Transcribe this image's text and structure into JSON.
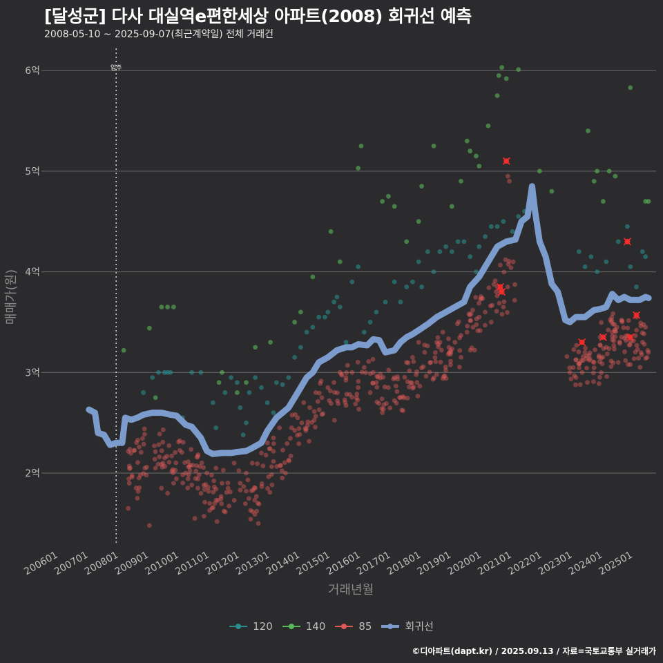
{
  "header": {
    "title": "[달성군] 다사 대실역e편한세상 아파트(2008) 회귀선 예측",
    "subtitle": "2008-05-10 ~ 2025-09-07(최근계약일) 전체 거래건"
  },
  "caption": "©디아파트(dapt.kr) / 2025.09.13 / 자료=국토교통부 실거래가",
  "chart_data": {
    "type": "scatter",
    "xlabel": "거래년월",
    "ylabel": "매매가(원)",
    "x_ticks": [
      "200601",
      "200701",
      "200801",
      "200901",
      "201001",
      "201101",
      "201201",
      "201301",
      "201401",
      "201501",
      "201601",
      "201701",
      "201801",
      "201901",
      "202001",
      "202101",
      "202201",
      "202301",
      "202401",
      "202501"
    ],
    "y_ticks": [
      {
        "value": 2,
        "label": "2억"
      },
      {
        "value": 3,
        "label": "3억"
      },
      {
        "value": 4,
        "label": "4억"
      },
      {
        "value": 5,
        "label": "5억"
      },
      {
        "value": 6,
        "label": "6억"
      }
    ],
    "xlim": [
      2005.53,
      2025.85
    ],
    "ylim": [
      1.28,
      6.22
    ],
    "grid": true,
    "legend_position": "bottom",
    "annotation": {
      "label": "입주",
      "x": 2008.0
    },
    "series": [
      {
        "name": "120",
        "color": "#2a8c8c",
        "kind": "points",
        "points": [
          [
            2008.9,
            2.8
          ],
          [
            2009.2,
            2.95
          ],
          [
            2009.4,
            3.0
          ],
          [
            2009.6,
            3.0
          ],
          [
            2009.7,
            3.0
          ],
          [
            2009.8,
            3.0
          ],
          [
            2010.2,
            2.55
          ],
          [
            2010.5,
            3.0
          ],
          [
            2010.8,
            3.0
          ],
          [
            2011.2,
            2.7
          ],
          [
            2011.3,
            2.45
          ],
          [
            2011.6,
            2.8
          ],
          [
            2011.8,
            2.95
          ],
          [
            2012.0,
            2.9
          ],
          [
            2012.1,
            2.65
          ],
          [
            2012.2,
            2.38
          ],
          [
            2012.3,
            2.5
          ],
          [
            2012.4,
            2.8
          ],
          [
            2012.6,
            2.95
          ],
          [
            2012.8,
            2.85
          ],
          [
            2013.0,
            2.7
          ],
          [
            2013.2,
            2.6
          ],
          [
            2013.3,
            2.9
          ],
          [
            2013.5,
            2.88
          ],
          [
            2013.7,
            2.95
          ],
          [
            2013.9,
            3.15
          ],
          [
            2014.1,
            3.25
          ],
          [
            2014.3,
            3.4
          ],
          [
            2014.5,
            3.45
          ],
          [
            2014.7,
            3.55
          ],
          [
            2014.9,
            3.55
          ],
          [
            2015.0,
            3.6
          ],
          [
            2015.2,
            3.7
          ],
          [
            2015.3,
            3.75
          ],
          [
            2015.4,
            3.65
          ],
          [
            2015.6,
            3.3
          ],
          [
            2015.8,
            3.9
          ],
          [
            2016.0,
            4.05
          ],
          [
            2016.2,
            3.4
          ],
          [
            2016.4,
            3.5
          ],
          [
            2016.6,
            3.6
          ],
          [
            2016.9,
            3.7
          ],
          [
            2017.2,
            3.9
          ],
          [
            2017.4,
            3.7
          ],
          [
            2017.6,
            3.85
          ],
          [
            2017.8,
            3.9
          ],
          [
            2018.0,
            4.1
          ],
          [
            2018.1,
            3.85
          ],
          [
            2018.3,
            4.2
          ],
          [
            2018.5,
            4.0
          ],
          [
            2018.7,
            4.2
          ],
          [
            2018.9,
            4.25
          ],
          [
            2019.1,
            4.2
          ],
          [
            2019.3,
            4.3
          ],
          [
            2019.5,
            4.3
          ],
          [
            2019.7,
            4.15
          ],
          [
            2019.9,
            4.0
          ],
          [
            2020.0,
            4.25
          ],
          [
            2020.2,
            4.35
          ],
          [
            2020.4,
            4.45
          ],
          [
            2020.6,
            4.45
          ],
          [
            2020.8,
            4.5
          ],
          [
            2020.9,
            4.3
          ],
          [
            2021.1,
            4.4
          ],
          [
            2021.3,
            4.55
          ],
          [
            2021.5,
            4.6
          ],
          [
            2021.7,
            4.7
          ],
          [
            2023.3,
            4.2
          ],
          [
            2023.5,
            4.05
          ],
          [
            2023.7,
            4.15
          ],
          [
            2023.9,
            4.0
          ],
          [
            2024.2,
            4.1
          ],
          [
            2024.6,
            4.3
          ],
          [
            2024.9,
            4.45
          ],
          [
            2025.0,
            4.05
          ],
          [
            2025.2,
            3.85
          ],
          [
            2025.4,
            4.2
          ],
          [
            2025.5,
            4.15
          ]
        ]
      },
      {
        "name": "140",
        "color": "#5ab85a",
        "kind": "points",
        "points": [
          [
            2008.25,
            3.22
          ],
          [
            2009.1,
            3.44
          ],
          [
            2009.3,
            2.75
          ],
          [
            2009.5,
            3.65
          ],
          [
            2009.7,
            3.65
          ],
          [
            2009.9,
            3.65
          ],
          [
            2011.4,
            2.9
          ],
          [
            2011.5,
            3.0
          ],
          [
            2012.0,
            2.8
          ],
          [
            2012.3,
            2.9
          ],
          [
            2012.6,
            3.25
          ],
          [
            2013.1,
            3.3
          ],
          [
            2013.9,
            3.5
          ],
          [
            2014.1,
            3.6
          ],
          [
            2014.5,
            3.95
          ],
          [
            2015.1,
            4.4
          ],
          [
            2015.4,
            4.1
          ],
          [
            2016.0,
            5.03
          ],
          [
            2016.1,
            5.25
          ],
          [
            2016.8,
            4.7
          ],
          [
            2017.0,
            4.75
          ],
          [
            2017.2,
            4.65
          ],
          [
            2017.6,
            4.3
          ],
          [
            2018.0,
            4.5
          ],
          [
            2018.1,
            4.85
          ],
          [
            2018.5,
            5.25
          ],
          [
            2019.1,
            4.65
          ],
          [
            2019.4,
            4.9
          ],
          [
            2019.6,
            5.3
          ],
          [
            2019.7,
            5.2
          ],
          [
            2019.9,
            5.15
          ],
          [
            2020.0,
            5.05
          ],
          [
            2020.3,
            5.45
          ],
          [
            2020.6,
            5.75
          ],
          [
            2020.65,
            5.95
          ],
          [
            2020.75,
            6.03
          ],
          [
            2020.9,
            5.92
          ],
          [
            2021.3,
            6.01
          ],
          [
            2022.0,
            5.0
          ],
          [
            2022.4,
            4.8
          ],
          [
            2023.6,
            5.4
          ],
          [
            2023.8,
            4.9
          ],
          [
            2023.9,
            5.0
          ],
          [
            2024.1,
            4.7
          ],
          [
            2024.3,
            5.0
          ],
          [
            2024.5,
            4.95
          ],
          [
            2025.0,
            5.83
          ],
          [
            2025.5,
            4.7
          ],
          [
            2025.6,
            4.7
          ]
        ]
      },
      {
        "name": "85",
        "color": "#e05a5a",
        "kind": "points",
        "points": []
      },
      {
        "name": "회귀선",
        "color": "#7b9ccd",
        "kind": "line",
        "points": [
          [
            2007.1,
            2.63
          ],
          [
            2007.3,
            2.6
          ],
          [
            2007.4,
            2.4
          ],
          [
            2007.6,
            2.38
          ],
          [
            2007.8,
            2.28
          ],
          [
            2008.0,
            2.3
          ],
          [
            2008.2,
            2.3
          ],
          [
            2008.3,
            2.55
          ],
          [
            2008.5,
            2.53
          ],
          [
            2008.7,
            2.55
          ],
          [
            2008.9,
            2.58
          ],
          [
            2009.2,
            2.6
          ],
          [
            2009.5,
            2.6
          ],
          [
            2009.8,
            2.58
          ],
          [
            2010.0,
            2.57
          ],
          [
            2010.3,
            2.48
          ],
          [
            2010.5,
            2.46
          ],
          [
            2010.8,
            2.35
          ],
          [
            2011.0,
            2.22
          ],
          [
            2011.2,
            2.19
          ],
          [
            2011.5,
            2.2
          ],
          [
            2011.8,
            2.2
          ],
          [
            2012.0,
            2.21
          ],
          [
            2012.3,
            2.22
          ],
          [
            2012.5,
            2.25
          ],
          [
            2012.8,
            2.3
          ],
          [
            2013.0,
            2.42
          ],
          [
            2013.3,
            2.55
          ],
          [
            2013.5,
            2.6
          ],
          [
            2013.7,
            2.65
          ],
          [
            2014.0,
            2.8
          ],
          [
            2014.3,
            2.95
          ],
          [
            2014.5,
            3.0
          ],
          [
            2014.7,
            3.1
          ],
          [
            2015.0,
            3.15
          ],
          [
            2015.3,
            3.22
          ],
          [
            2015.6,
            3.25
          ],
          [
            2015.8,
            3.25
          ],
          [
            2016.0,
            3.28
          ],
          [
            2016.3,
            3.27
          ],
          [
            2016.5,
            3.33
          ],
          [
            2016.7,
            3.32
          ],
          [
            2016.9,
            3.2
          ],
          [
            2017.2,
            3.22
          ],
          [
            2017.4,
            3.3
          ],
          [
            2017.6,
            3.35
          ],
          [
            2017.8,
            3.38
          ],
          [
            2018.0,
            3.42
          ],
          [
            2018.3,
            3.48
          ],
          [
            2018.6,
            3.55
          ],
          [
            2018.9,
            3.6
          ],
          [
            2019.2,
            3.65
          ],
          [
            2019.5,
            3.7
          ],
          [
            2019.7,
            3.85
          ],
          [
            2020.0,
            3.95
          ],
          [
            2020.2,
            4.05
          ],
          [
            2020.4,
            4.15
          ],
          [
            2020.6,
            4.25
          ],
          [
            2020.9,
            4.3
          ],
          [
            2021.2,
            4.32
          ],
          [
            2021.4,
            4.5
          ],
          [
            2021.6,
            4.55
          ],
          [
            2021.75,
            4.85
          ],
          [
            2021.85,
            4.6
          ],
          [
            2022.0,
            4.3
          ],
          [
            2022.2,
            4.15
          ],
          [
            2022.4,
            3.88
          ],
          [
            2022.6,
            3.8
          ],
          [
            2022.85,
            3.52
          ],
          [
            2023.0,
            3.5
          ],
          [
            2023.2,
            3.55
          ],
          [
            2023.5,
            3.55
          ],
          [
            2023.8,
            3.62
          ],
          [
            2024.0,
            3.63
          ],
          [
            2024.2,
            3.65
          ],
          [
            2024.4,
            3.78
          ],
          [
            2024.6,
            3.72
          ],
          [
            2024.8,
            3.75
          ],
          [
            2025.0,
            3.72
          ],
          [
            2025.3,
            3.72
          ],
          [
            2025.5,
            3.75
          ],
          [
            2025.6,
            3.74
          ]
        ]
      }
    ],
    "series_85_generator": {
      "description_points": [
        [
          2008.95,
          2.05
        ],
        [
          2009.0,
          1.98
        ],
        [
          2009.1,
          1.48
        ],
        [
          2009.3,
          2.05
        ],
        [
          2009.5,
          1.85
        ],
        [
          2009.7,
          1.8
        ],
        [
          2008.4,
          1.65
        ],
        [
          2008.7,
          1.75
        ],
        [
          2009.9,
          1.9
        ],
        [
          2010.3,
          2.0
        ],
        [
          2010.6,
          1.55
        ],
        [
          2010.7,
          1.85
        ],
        [
          2010.9,
          1.88
        ],
        [
          2011.0,
          2.0
        ],
        [
          2011.3,
          2.05
        ],
        [
          2011.5,
          1.9
        ],
        [
          2011.7,
          1.85
        ],
        [
          2011.9,
          2.1
        ],
        [
          2012.1,
          1.9
        ],
        [
          2012.3,
          2.0
        ],
        [
          2012.5,
          2.1
        ],
        [
          2012.7,
          1.5
        ],
        [
          2012.8,
          2.2
        ],
        [
          2013.0,
          2.3
        ],
        [
          2013.2,
          2.35
        ],
        [
          2013.4,
          2.45
        ],
        [
          2013.6,
          2.0
        ],
        [
          2013.8,
          2.45
        ],
        [
          2014.0,
          2.55
        ],
        [
          2014.2,
          2.7
        ],
        [
          2014.4,
          2.65
        ],
        [
          2014.6,
          2.8
        ],
        [
          2014.8,
          2.75
        ],
        [
          2015.0,
          2.85
        ],
        [
          2015.2,
          2.9
        ],
        [
          2015.4,
          3.0
        ],
        [
          2015.6,
          2.95
        ],
        [
          2015.8,
          3.0
        ],
        [
          2016.0,
          2.85
        ],
        [
          2016.2,
          3.05
        ],
        [
          2016.4,
          2.8
        ],
        [
          2016.6,
          2.9
        ],
        [
          2016.8,
          2.6
        ],
        [
          2017.0,
          2.85
        ],
        [
          2017.2,
          2.95
        ],
        [
          2017.4,
          2.75
        ],
        [
          2017.6,
          3.1
        ],
        [
          2017.8,
          3.15
        ],
        [
          2018.0,
          3.3
        ],
        [
          2018.2,
          3.2
        ],
        [
          2018.4,
          3.1
        ],
        [
          2018.6,
          3.3
        ],
        [
          2018.8,
          3.4
        ],
        [
          2019.0,
          3.25
        ],
        [
          2019.2,
          3.3
        ],
        [
          2019.4,
          3.15
        ],
        [
          2019.6,
          3.4
        ],
        [
          2019.8,
          3.45
        ],
        [
          2020.0,
          3.55
        ],
        [
          2020.2,
          3.6
        ],
        [
          2020.4,
          3.5
        ],
        [
          2020.6,
          3.85
        ],
        [
          2020.7,
          3.8
        ],
        [
          2020.9,
          5.1
        ],
        [
          2020.95,
          4.95
        ],
        [
          2021.0,
          4.9
        ],
        [
          2020.8,
          3.65
        ],
        [
          2023.0,
          3.0
        ],
        [
          2023.2,
          2.95
        ],
        [
          2023.4,
          3.3
        ],
        [
          2023.5,
          3.2
        ],
        [
          2023.8,
          3.1
        ],
        [
          2024.0,
          3.35
        ],
        [
          2024.2,
          3.25
        ],
        [
          2024.4,
          3.4
        ],
        [
          2024.6,
          3.1
        ],
        [
          2024.9,
          4.3
        ],
        [
          2025.0,
          3.35
        ],
        [
          2025.2,
          3.55
        ],
        [
          2025.4,
          3.3
        ],
        [
          2025.6,
          3.2
        ],
        [
          2025.5,
          3.45
        ],
        [
          2025.55,
          3.15
        ]
      ],
      "highlight_points": [
        [
          2020.9,
          5.1
        ],
        [
          2020.7,
          3.85
        ],
        [
          2020.75,
          3.8
        ],
        [
          2023.4,
          3.3
        ],
        [
          2024.1,
          3.35
        ],
        [
          2024.9,
          4.3
        ],
        [
          2025.0,
          3.35
        ],
        [
          2025.2,
          3.57
        ]
      ]
    }
  }
}
